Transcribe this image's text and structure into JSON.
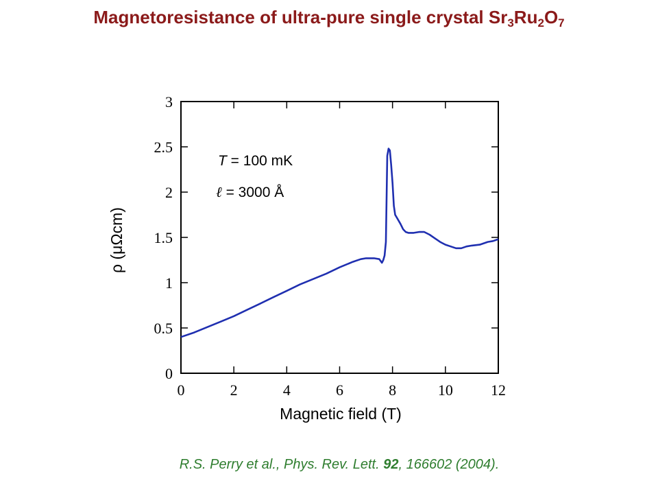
{
  "title": {
    "main": "Magnetoresistance of ultra-pure single crystal Sr",
    "sub1": "3",
    "mid": "Ru",
    "sub2": "2",
    "end": "O",
    "sub3": "7"
  },
  "citation": {
    "authors": "R.S. Perry et al., Phys. Rev. Lett. ",
    "volume": "92",
    "rest": ", 166602  (2004)."
  },
  "annotations": {
    "temp_symbol": "T",
    "temp_value": " = 100  mK",
    "mfp_symbol": "ℓ",
    "mfp_value": " = 3000 Å"
  },
  "colors": {
    "title": "#8b1a1a",
    "citation": "#2e7d2e",
    "line": "#1f2fb0"
  },
  "chart_data": {
    "type": "line",
    "xlabel": "Magnetic field (T)",
    "ylabel": "ρ (μΩcm)",
    "xlim": [
      0,
      12
    ],
    "ylim": [
      0,
      3
    ],
    "xticks": [
      0,
      2,
      4,
      6,
      8,
      10,
      12
    ],
    "yticks": [
      0,
      0.5,
      1,
      1.5,
      2,
      2.5,
      3
    ],
    "ytick_labels": [
      "0",
      "0.5",
      "1",
      "1.5",
      "2",
      "2.5",
      "3"
    ],
    "grid": false,
    "series": [
      {
        "x": [
          0,
          0.5,
          1,
          1.5,
          2,
          2.5,
          3,
          3.5,
          4,
          4.5,
          5,
          5.5,
          6,
          6.5,
          6.8,
          7.0,
          7.3,
          7.5,
          7.6,
          7.65,
          7.7,
          7.75,
          7.8,
          7.85,
          7.9,
          7.95,
          8.0,
          8.05,
          8.1,
          8.2,
          8.3,
          8.4,
          8.5,
          8.6,
          8.8,
          9.0,
          9.2,
          9.4,
          9.6,
          9.8,
          10.0,
          10.2,
          10.4,
          10.6,
          10.8,
          11.0,
          11.3,
          11.6,
          11.8,
          12.0
        ],
        "y": [
          0.4,
          0.45,
          0.51,
          0.57,
          0.63,
          0.7,
          0.77,
          0.84,
          0.91,
          0.98,
          1.04,
          1.1,
          1.17,
          1.23,
          1.26,
          1.27,
          1.27,
          1.26,
          1.22,
          1.25,
          1.3,
          1.45,
          2.4,
          2.48,
          2.46,
          2.3,
          2.1,
          1.85,
          1.75,
          1.7,
          1.65,
          1.59,
          1.56,
          1.55,
          1.55,
          1.56,
          1.56,
          1.53,
          1.49,
          1.45,
          1.42,
          1.4,
          1.38,
          1.38,
          1.4,
          1.41,
          1.42,
          1.45,
          1.46,
          1.48
        ]
      }
    ]
  }
}
